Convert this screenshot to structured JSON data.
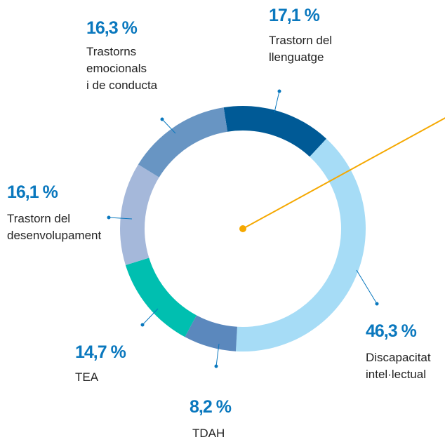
{
  "chart_data": {
    "type": "donut",
    "categories": [
      "Trastorn del\nllenguatge",
      "Discapacitat\nintel·lectual",
      "TDAH",
      "TEA",
      "Trastorn del\ndesenvolupament",
      "Trastorns\nemocionals\ni de conducta"
    ],
    "values": [
      17.1,
      46.3,
      8.2,
      14.7,
      16.1,
      16.3
    ],
    "value_labels": [
      "17,1 %",
      "46,3 %",
      "8,2 %",
      "14,7 %",
      "16,1 %",
      "16,3 %"
    ],
    "colors": [
      "#005a96",
      "#a6dcf6",
      "#5b88bd",
      "#00bfb0",
      "#a5b8da",
      "#6895c3"
    ]
  }
}
